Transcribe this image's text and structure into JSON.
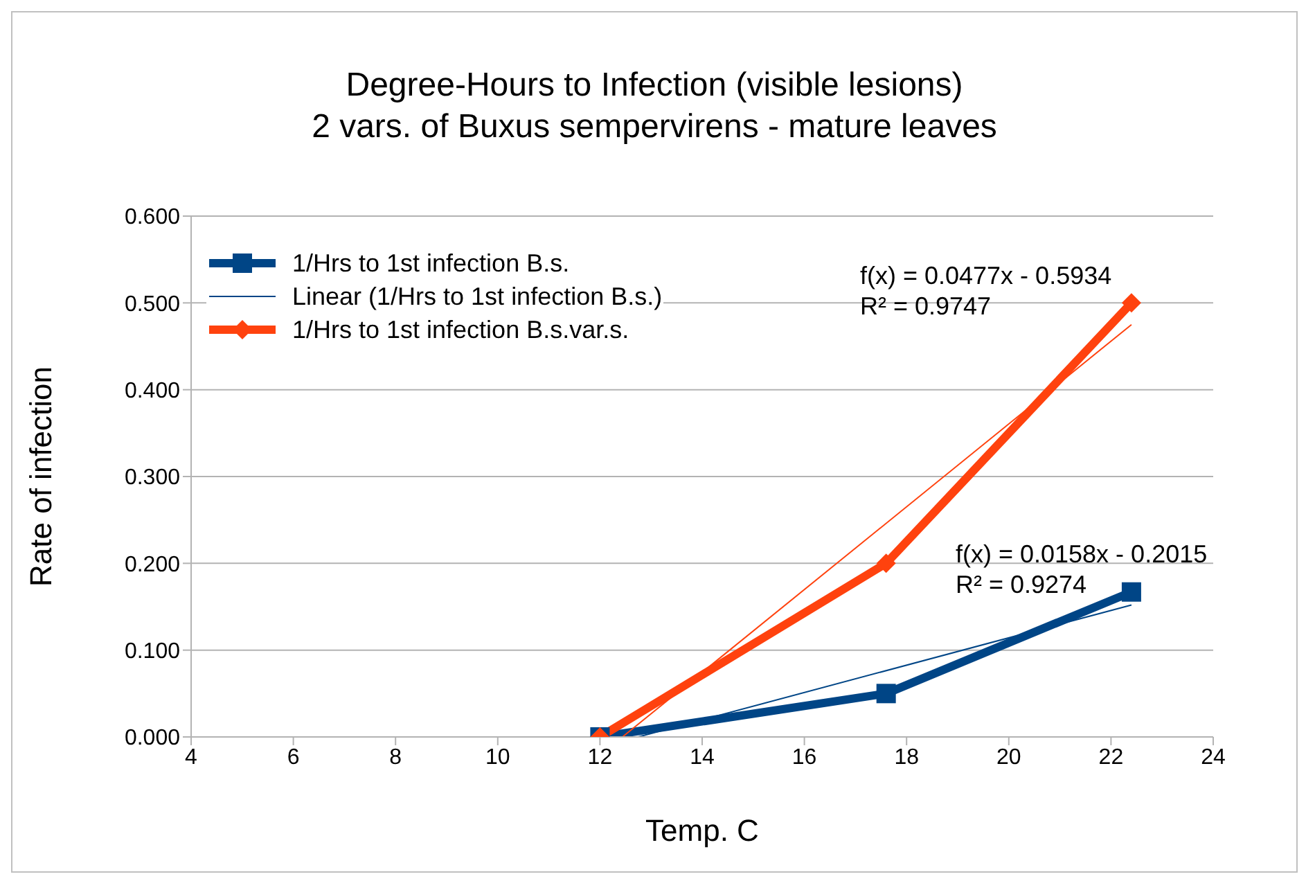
{
  "chart_data": {
    "type": "line",
    "title": "Degree-Hours to Infection (visible lesions)\n2 vars. of Buxus sempervirens - mature leaves",
    "xlabel": "Temp. C",
    "ylabel": "Rate of infection",
    "xlim": [
      4,
      24
    ],
    "xticks": [
      4,
      6,
      8,
      10,
      12,
      14,
      16,
      18,
      20,
      22,
      24
    ],
    "ylim": [
      0,
      0.6
    ],
    "yticks": [
      {
        "value": 0,
        "label": "0.000"
      },
      {
        "value": 0.1,
        "label": "0.100"
      },
      {
        "value": 0.2,
        "label": "0.200"
      },
      {
        "value": 0.3,
        "label": "0.300"
      },
      {
        "value": 0.4,
        "label": "0.400"
      },
      {
        "value": 0.5,
        "label": "0.500"
      },
      {
        "value": 0.6,
        "label": "0.600"
      }
    ],
    "grid": "y",
    "legend": "top left",
    "series": [
      {
        "name": "1/Hrs to 1st infection B.s.",
        "color": "#004586",
        "x": [
          12,
          17.6,
          22.4
        ],
        "values": [
          0,
          0.05,
          0.167
        ],
        "marker": "square"
      },
      {
        "name": "Linear (1/Hrs to 1st infection B.s.)",
        "type": "line",
        "color": "#004586",
        "x": [
          12.75,
          22.4
        ],
        "values": [
          0,
          0.152
        ],
        "marker": "none"
      },
      {
        "name": "1/Hrs to 1st infection B.s.var.s.",
        "color": "#ff420e",
        "x": [
          12,
          17.6,
          22.4
        ],
        "values": [
          0,
          0.2,
          0.5
        ],
        "marker": "diamond"
      },
      {
        "type": "line",
        "color": "#ff420e",
        "x": [
          12.44,
          22.4
        ],
        "values": [
          0,
          0.475
        ],
        "marker": "none"
      }
    ],
    "annotations": [
      "f(x) = 0.0477x - 0.5934",
      "R² = 0.9747",
      "f(x) = 0.0158x - 0.2015",
      "R² = 0.9274"
    ]
  }
}
